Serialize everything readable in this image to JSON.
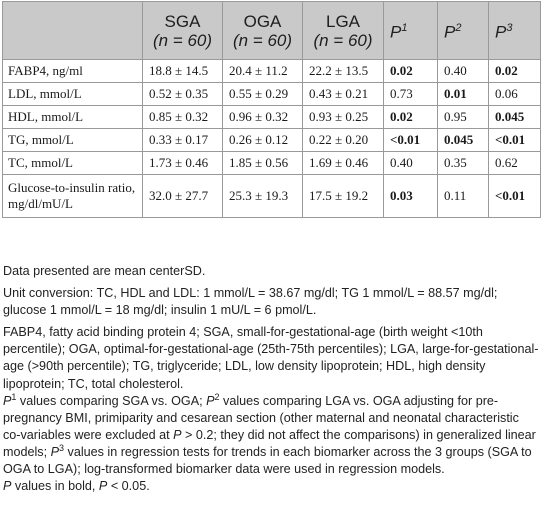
{
  "table": {
    "header": {
      "col0": "",
      "sga": "SGA",
      "sga_n": "(n = 60)",
      "oga": "OGA",
      "oga_n": "(n = 60)",
      "lga": "LGA",
      "lga_n": "(n = 60)",
      "p1": "P",
      "p1_sup": "1",
      "p2": "P",
      "p2_sup": "2",
      "p3": "P",
      "p3_sup": "3"
    },
    "rows": [
      {
        "label": "FABP4, ng/ml",
        "sga": "18.8 ± 14.5",
        "oga": "20.4 ± 11.2",
        "lga": "22.2 ± 13.5",
        "p1": "0.02",
        "p2": "0.40",
        "p3": "0.02"
      },
      {
        "label": "LDL, mmol/L",
        "sga": "0.52 ± 0.35",
        "oga": "0.55 ± 0.29",
        "lga": "0.43 ± 0.21",
        "p1": "0.73",
        "p2": "0.01",
        "p3": "0.06"
      },
      {
        "label": "HDL, mmol/L",
        "sga": "0.85 ± 0.32",
        "oga": "0.96 ± 0.32",
        "lga": "0.93 ± 0.25",
        "p1": "0.02",
        "p2": "0.95",
        "p3": "0.045"
      },
      {
        "label": "TG, mmol/L",
        "sga": "0.33 ± 0.17",
        "oga": "0.26 ± 0.12",
        "lga": "0.22 ± 0.20",
        "p1": "<0.01",
        "p2": "0.045",
        "p3": "<0.01"
      },
      {
        "label": "TC, mmol/L",
        "sga": "1.73 ± 0.46",
        "oga": "1.85 ± 0.56",
        "lga": "1.69 ± 0.46",
        "p1": "0.40",
        "p2": "0.35",
        "p3": "0.62"
      },
      {
        "label": "Glucose-to-insulin ratio, mg/dl/mU/L",
        "sga": "32.0 ± 27.7",
        "oga": "25.3 ± 19.3",
        "lga": "17.5 ± 19.2",
        "p1": "0.03",
        "p2": "0.11",
        "p3": "<0.01"
      }
    ]
  },
  "notes": {
    "data_presented": "Data presented are mean centerSD.",
    "unit_conversion": "Unit conversion: TC, HDL and LDL: 1 mmol/L = 38.67 mg/dl; TG 1 mmol/L = 88.57 mg/dl; glucose 1 mmol/L = 18 mg/dl; insulin 1 mU/L = 6 pmol/L.",
    "abbreviations": "FABP4, fatty acid binding protein 4; SGA, small-for-gestational-age (birth weight <10th percentile); OGA, optimal-for-gestational-age (25th-75th percentiles); LGA, large-for-gestational-age (>90th percentile); TG, triglyceride; LDL, low density lipoprotein; HDL, high density lipoprotein; TC, total cholesterol.",
    "p_values": {
      "p1_letter": "P",
      "p1_sup": "1",
      "p1_text": " values comparing SGA vs. OGA; ",
      "p2_letter": "P",
      "p2_sup": "2",
      "p2_text": " values comparing LGA vs. OGA adjusting for pre-pregnancy BMI, primiparity and cesarean section (other maternal and neonatal characteristic co-variables were excluded at ",
      "p2_letter_b": "P",
      "p2_text_b": " > 0.2; they did not affect the comparisons) in generalized linear models; ",
      "p3_letter": "P",
      "p3_sup": "3",
      "p3_text": " values in regression tests for trends in each biomarker across the 3 groups (SGA to OGA to LGA); log-transformed biomarker data were used in regression models."
    },
    "bold_note": {
      "letter": "P",
      "text": " values in bold, ",
      "letter2": "P",
      "text2": " < 0.05."
    }
  }
}
